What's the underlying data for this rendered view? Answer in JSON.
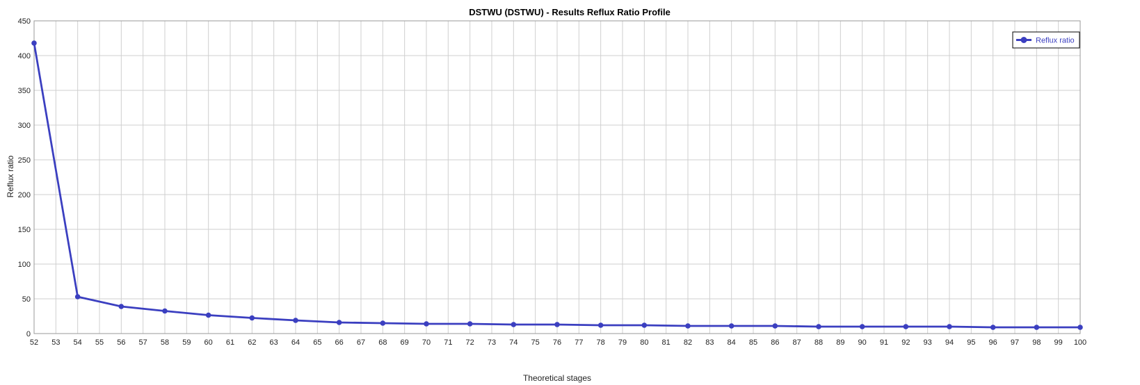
{
  "chart_data": {
    "type": "line",
    "title": "DSTWU (DSTWU) - Results Reflux Ratio Profile",
    "xlabel": "Theoretical stages",
    "ylabel": "Reflux ratio",
    "xlim": [
      52,
      100
    ],
    "ylim": [
      0,
      450
    ],
    "x_ticks": [
      52,
      53,
      54,
      55,
      56,
      57,
      58,
      59,
      60,
      61,
      62,
      63,
      64,
      65,
      66,
      67,
      68,
      69,
      70,
      71,
      72,
      73,
      74,
      75,
      76,
      77,
      78,
      79,
      80,
      81,
      82,
      83,
      84,
      85,
      86,
      87,
      88,
      89,
      90,
      91,
      92,
      93,
      94,
      95,
      96,
      97,
      98,
      99,
      100
    ],
    "y_ticks": [
      0,
      50,
      100,
      150,
      200,
      250,
      300,
      350,
      400,
      450
    ],
    "grid": true,
    "legend_position": "top-right",
    "series_color": "#3b3fc0",
    "series": [
      {
        "name": "Reflux ratio",
        "x": [
          52,
          54,
          56,
          58,
          60,
          62,
          64,
          66,
          68,
          70,
          72,
          74,
          76,
          78,
          80,
          82,
          84,
          86,
          88,
          90,
          92,
          94,
          96,
          98,
          100
        ],
        "values": [
          418,
          53,
          39,
          32.5,
          26.5,
          22.5,
          19,
          16,
          15,
          14,
          14,
          13,
          13,
          12,
          12,
          11,
          11,
          11,
          10,
          10,
          10,
          10,
          9,
          9,
          9
        ]
      }
    ]
  }
}
